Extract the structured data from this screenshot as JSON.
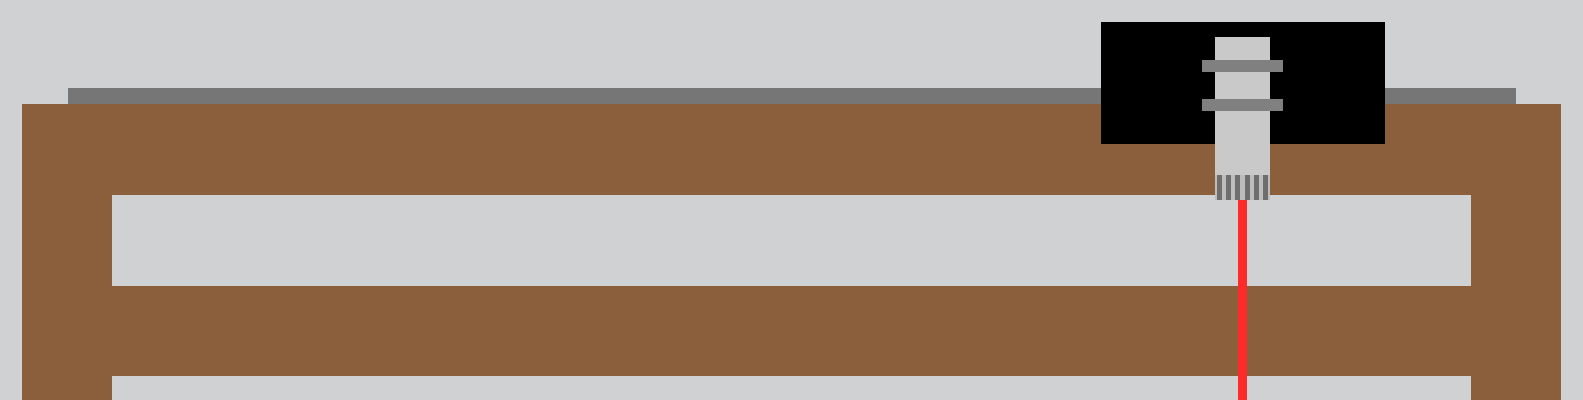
{
  "colors": {
    "background": "#d0d1d3",
    "rail": "#767676",
    "frame_wood": "#8b5e3c",
    "sensor_housing": "#000000",
    "sensor_body": "#c9c9c9",
    "mount_ring": "#808080",
    "connector_dark": "#6e6e6e",
    "connector_light": "#bdbdbd",
    "laser": "#ff2a2a"
  },
  "components": {
    "rail": "rail",
    "frame": "wooden-frame",
    "sensor": "sensor",
    "laser": "laser-beam"
  },
  "connector": {
    "stripe_count": 6
  }
}
